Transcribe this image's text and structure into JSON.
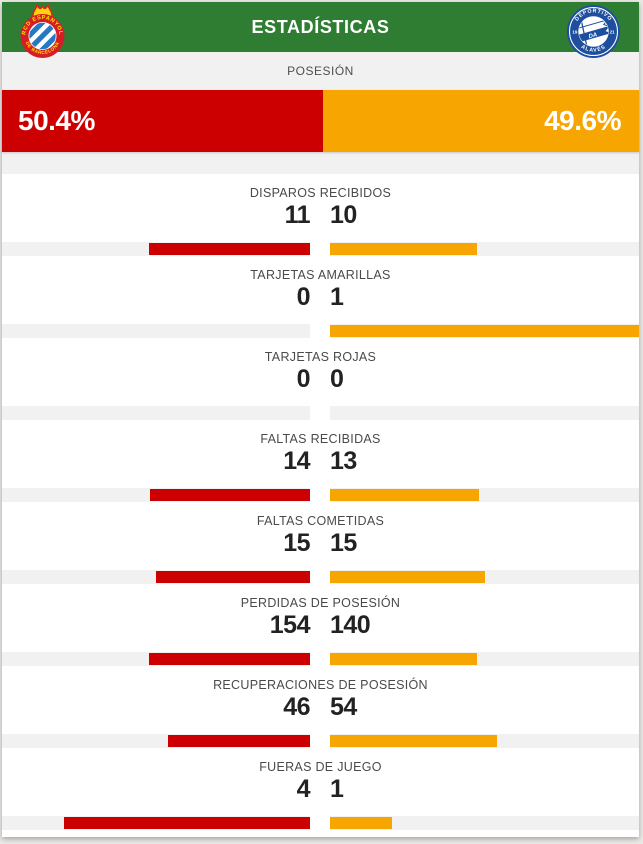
{
  "header": {
    "title": "ESTADÍSTICAS",
    "home_crest": {
      "name": "espanyol-crest",
      "ring_text_top": "RCD ESPANYOL",
      "ring_text_bottom": "DE BARCELONA",
      "ring_color": "#d41d24",
      "stripe_color": "#2579c4",
      "crown_color": "#ffd20a"
    },
    "away_crest": {
      "name": "alaves-crest",
      "ring_text_top": "DEPORTIVO",
      "ring_text_bottom": "ALAVÉS",
      "year_left": "19",
      "year_right": "21",
      "blue": "#1d4f9e"
    }
  },
  "colors": {
    "header_green": "#2e7d32",
    "home": "#cc0000",
    "away": "#f7a500",
    "track_gray": "#f1f1f1"
  },
  "possession": {
    "label": "POSESIÓN",
    "home_pct_label": "50.4%",
    "away_pct_label": "49.6%",
    "home_value": 50.4,
    "away_value": 49.6
  },
  "stats": [
    {
      "label": "DISPAROS RECIBIDOS",
      "home": "11",
      "away": "10",
      "home_value": 11,
      "away_value": 10
    },
    {
      "label": "TARJETAS AMARILLAS",
      "home": "0",
      "away": "1",
      "home_value": 0,
      "away_value": 1
    },
    {
      "label": "TARJETAS ROJAS",
      "home": "0",
      "away": "0",
      "home_value": 0,
      "away_value": 0
    },
    {
      "label": "FALTAS RECIBIDAS",
      "home": "14",
      "away": "13",
      "home_value": 14,
      "away_value": 13
    },
    {
      "label": "FALTAS COMETIDAS",
      "home": "15",
      "away": "15",
      "home_value": 15,
      "away_value": 15
    },
    {
      "label": "PERDIDAS DE POSESIÓN",
      "home": "154",
      "away": "140",
      "home_value": 154,
      "away_value": 140
    },
    {
      "label": "RECUPERACIONES DE POSESIÓN",
      "home": "46",
      "away": "54",
      "home_value": 46,
      "away_value": 54
    },
    {
      "label": "FUERAS DE JUEGO",
      "home": "4",
      "away": "1",
      "home_value": 4,
      "away_value": 1
    }
  ]
}
